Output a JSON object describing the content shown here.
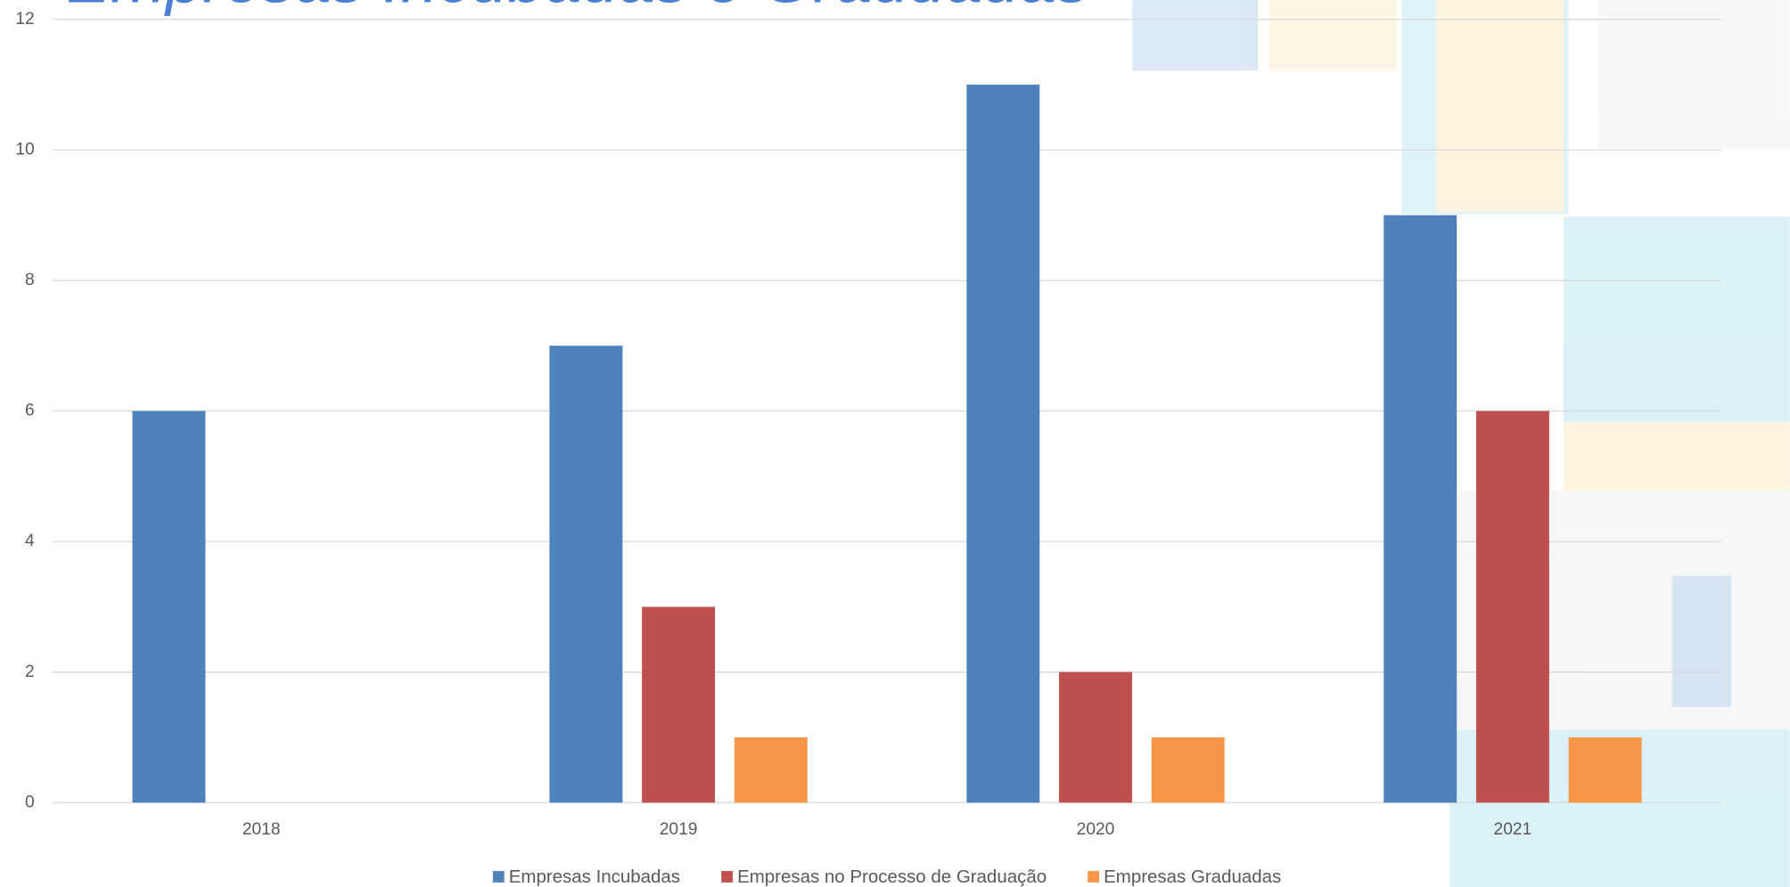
{
  "chart_data": {
    "type": "bar",
    "title": "Empresas Incubadas e Graduadas",
    "categories": [
      "2018",
      "2019",
      "2020",
      "2021"
    ],
    "series": [
      {
        "name": "Empresas Incubadas",
        "color": "#4f81bd",
        "values": [
          6,
          7,
          11,
          9
        ]
      },
      {
        "name": "Empresas no Processo de Graduação",
        "color": "#c0504d",
        "values": [
          0,
          3,
          2,
          6
        ]
      },
      {
        "name": "Empresas Graduadas",
        "color": "#f79646",
        "values": [
          0,
          1,
          1,
          1
        ]
      }
    ],
    "ylim": [
      0,
      12
    ],
    "yticks": [
      0,
      2,
      4,
      6,
      8,
      10,
      12
    ],
    "grid": true,
    "legend": "bottom"
  }
}
